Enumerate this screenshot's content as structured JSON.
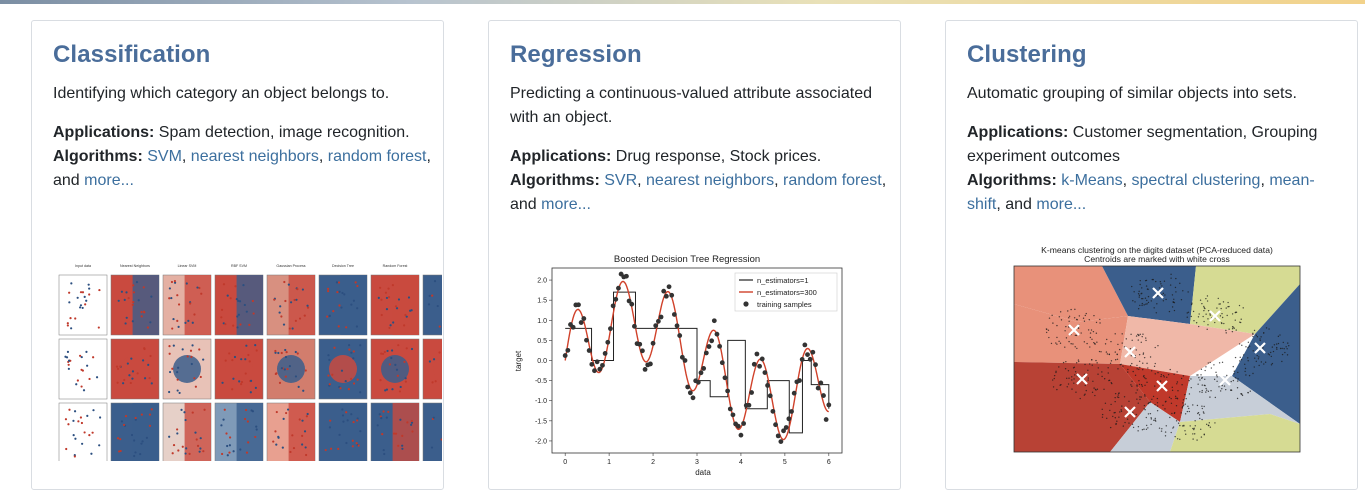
{
  "cards": [
    {
      "title": "Classification",
      "description": "Identifying which category an object belongs to.",
      "applications_label": "Applications:",
      "applications": "Spam detection, image recognition.",
      "algorithms_label": "Algorithms:",
      "links": [
        "SVM",
        "nearest neighbors",
        "random forest",
        "more..."
      ],
      "and_text": ", and",
      "figure": {
        "columns": [
          "Input data",
          "Nearest Neighbors",
          "Linear SVM",
          "RBF SVM",
          "Gaussian Process",
          "Decision Tree",
          "Random Forest",
          "N"
        ]
      }
    },
    {
      "title": "Regression",
      "description": "Predicting a continuous-valued attribute associated with an object.",
      "applications_label": "Applications:",
      "applications": "Drug response, Stock prices.",
      "algorithms_label": "Algorithms:",
      "links": [
        "SVR",
        "nearest neighbors",
        "random forest",
        "more..."
      ],
      "and_text": ", and",
      "figure": {
        "title": "Boosted Decision Tree Regression",
        "xlabel": "data",
        "ylabel": "target",
        "legend": [
          "n_estimators=1",
          "n_estimators=300",
          "training samples"
        ],
        "xticks": [
          "0",
          "1",
          "2",
          "3",
          "4",
          "5",
          "6"
        ],
        "yticks": [
          "2.0",
          "1.5",
          "1.0",
          "0.5",
          "0.0",
          "-0.5",
          "-1.0",
          "-1.5",
          "-2.0"
        ]
      }
    },
    {
      "title": "Clustering",
      "description": "Automatic grouping of similar objects into sets.",
      "applications_label": "Applications:",
      "applications": "Customer segmentation, Grouping experiment outcomes",
      "algorithms_label": "Algorithms:",
      "links": [
        "k-Means",
        "spectral clustering",
        "mean-shift",
        "more..."
      ],
      "and_text": ", and",
      "figure": {
        "title_line1": "K-means clustering on the digits dataset (PCA-reduced data)",
        "title_line2": "Centroids are marked with white cross"
      }
    }
  ],
  "colors": {
    "title": "#4a6d9a",
    "link": "#3c6f9e",
    "text": "#212529",
    "red": "#c0392b",
    "blue": "#3b5e8c"
  }
}
